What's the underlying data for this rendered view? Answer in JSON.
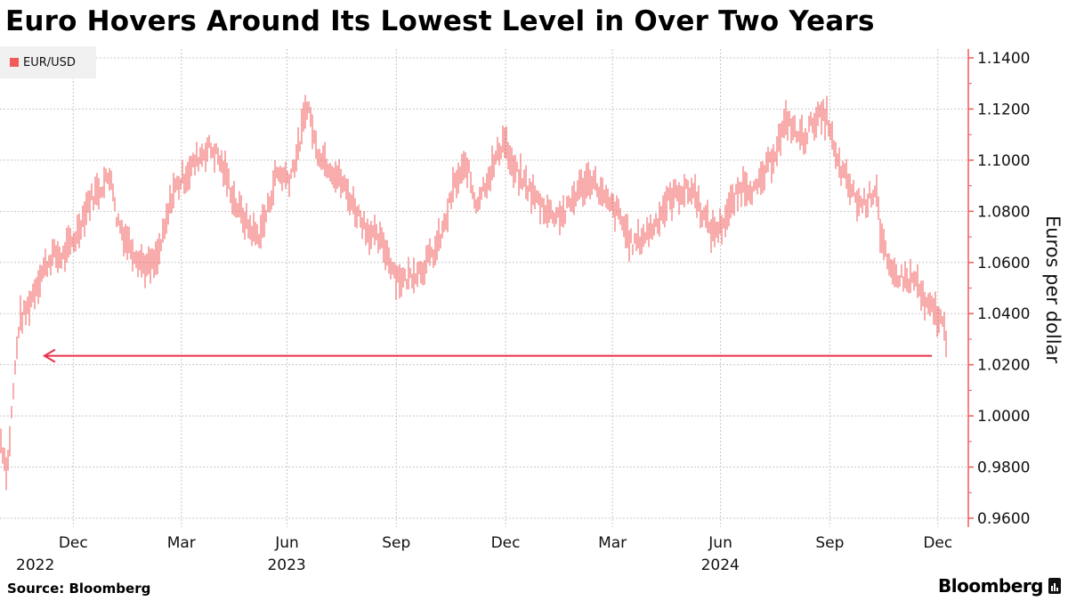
{
  "title": "Euro Hovers Around Its Lowest Level in Over Two Years",
  "legend": {
    "label": "EUR/USD",
    "color": "#f25a5a"
  },
  "source": "Source: Bloomberg",
  "brand": "Bloomberg",
  "chart_data": {
    "type": "bar",
    "subtype": "high-low daily bars",
    "title": "Euro Hovers Around Its Lowest Level in Over Two Years",
    "xlabel": "",
    "ylabel": "Euros per dollar",
    "ylim": [
      0.96,
      1.14
    ],
    "xlim_days": [
      0,
      793
    ],
    "grid": true,
    "legend_position": "top-left",
    "yticks": [
      "1.1400",
      "1.1200",
      "1.1000",
      "1.0800",
      "1.0600",
      "1.0400",
      "1.0200",
      "1.0000",
      "0.9800",
      "0.9600"
    ],
    "ytick_values": [
      1.14,
      1.12,
      1.1,
      1.08,
      1.06,
      1.04,
      1.02,
      1.0,
      0.98,
      0.96
    ],
    "xticks": [
      {
        "day": 61,
        "label": "Dec",
        "year": "2022"
      },
      {
        "day": 151,
        "label": "Mar",
        "year": ""
      },
      {
        "day": 239,
        "label": "Jun",
        "year": "2023"
      },
      {
        "day": 330,
        "label": "Sep",
        "year": ""
      },
      {
        "day": 421,
        "label": "Dec",
        "year": ""
      },
      {
        "day": 510,
        "label": "Mar",
        "year": ""
      },
      {
        "day": 600,
        "label": "Jun",
        "year": "2024"
      },
      {
        "day": 691,
        "label": "Sep",
        "year": ""
      },
      {
        "day": 781,
        "label": "Dec",
        "year": ""
      }
    ],
    "series": [
      {
        "name": "EUR/USD",
        "color": "#f25a5a",
        "points": [
          [
            0,
            0.992
          ],
          [
            6,
            0.978
          ],
          [
            11,
            1.009
          ],
          [
            16,
            1.037
          ],
          [
            22,
            1.041
          ],
          [
            30,
            1.051
          ],
          [
            37,
            1.058
          ],
          [
            44,
            1.063
          ],
          [
            52,
            1.062
          ],
          [
            63,
            1.07
          ],
          [
            74,
            1.084
          ],
          [
            85,
            1.09
          ],
          [
            93,
            1.095
          ],
          [
            96,
            1.079
          ],
          [
            104,
            1.07
          ],
          [
            115,
            1.062
          ],
          [
            122,
            1.058
          ],
          [
            130,
            1.06
          ],
          [
            137,
            1.072
          ],
          [
            144,
            1.088
          ],
          [
            156,
            1.095
          ],
          [
            167,
            1.102
          ],
          [
            174,
            1.105
          ],
          [
            181,
            1.102
          ],
          [
            189,
            1.093
          ],
          [
            196,
            1.083
          ],
          [
            207,
            1.074
          ],
          [
            215,
            1.07
          ],
          [
            222,
            1.079
          ],
          [
            230,
            1.095
          ],
          [
            241,
            1.093
          ],
          [
            248,
            1.103
          ],
          [
            256,
            1.123
          ],
          [
            263,
            1.105
          ],
          [
            274,
            1.098
          ],
          [
            285,
            1.091
          ],
          [
            296,
            1.081
          ],
          [
            307,
            1.072
          ],
          [
            319,
            1.067
          ],
          [
            330,
            1.055
          ],
          [
            337,
            1.053
          ],
          [
            344,
            1.056
          ],
          [
            352,
            1.058
          ],
          [
            363,
            1.065
          ],
          [
            370,
            1.074
          ],
          [
            378,
            1.09
          ],
          [
            389,
            1.098
          ],
          [
            396,
            1.083
          ],
          [
            404,
            1.091
          ],
          [
            411,
            1.098
          ],
          [
            420,
            1.109
          ],
          [
            426,
            1.097
          ],
          [
            437,
            1.091
          ],
          [
            448,
            1.084
          ],
          [
            459,
            1.079
          ],
          [
            470,
            1.079
          ],
          [
            481,
            1.088
          ],
          [
            493,
            1.093
          ],
          [
            504,
            1.084
          ],
          [
            515,
            1.079
          ],
          [
            526,
            1.067
          ],
          [
            533,
            1.069
          ],
          [
            544,
            1.074
          ],
          [
            556,
            1.084
          ],
          [
            567,
            1.088
          ],
          [
            578,
            1.088
          ],
          [
            585,
            1.079
          ],
          [
            593,
            1.072
          ],
          [
            600,
            1.074
          ],
          [
            611,
            1.084
          ],
          [
            619,
            1.091
          ],
          [
            630,
            1.088
          ],
          [
            637,
            1.095
          ],
          [
            644,
            1.102
          ],
          [
            656,
            1.116
          ],
          [
            663,
            1.11
          ],
          [
            670,
            1.109
          ],
          [
            678,
            1.116
          ],
          [
            689,
            1.117
          ],
          [
            696,
            1.1
          ],
          [
            707,
            1.09
          ],
          [
            715,
            1.083
          ],
          [
            722,
            1.084
          ],
          [
            730,
            1.09
          ],
          [
            733,
            1.072
          ],
          [
            741,
            1.055
          ],
          [
            748,
            1.055
          ],
          [
            756,
            1.053
          ],
          [
            763,
            1.053
          ],
          [
            770,
            1.043
          ],
          [
            778,
            1.041
          ],
          [
            784,
            1.037
          ],
          [
            789,
            1.029
          ]
        ]
      }
    ],
    "annotations": [
      {
        "type": "arrow-line",
        "value": 1.0235,
        "from_day": 776,
        "to_day": 37,
        "color": "#e8334a"
      }
    ]
  }
}
